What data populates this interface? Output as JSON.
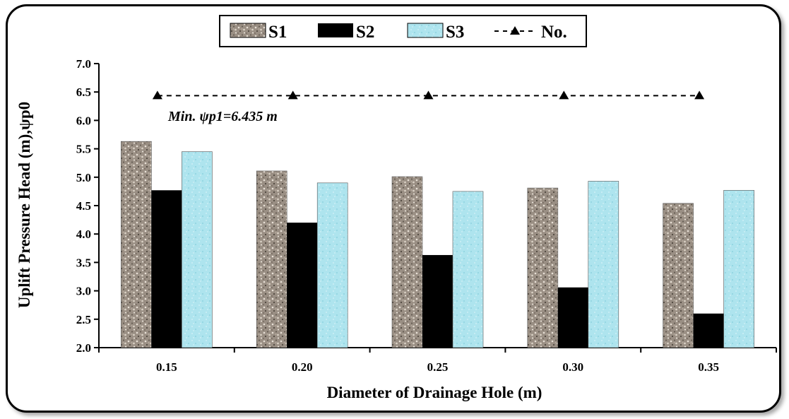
{
  "chart_data": {
    "type": "bar",
    "xlabel": "Diameter of Drainage Hole (m)",
    "ylabel": "Uplift Pressure Head (m),ψp0",
    "categories": [
      "0.15",
      "0.20",
      "0.25",
      "0.30",
      "0.35"
    ],
    "ylim": [
      2.0,
      7.0
    ],
    "yticks": [
      "2.0",
      "2.5",
      "3.0",
      "3.5",
      "4.0",
      "4.5",
      "5.0",
      "5.5",
      "6.0",
      "6.5",
      "7.0"
    ],
    "grid": false,
    "legend_position": "top-center",
    "series": [
      {
        "name": "S1",
        "kind": "bar",
        "pattern": "granite",
        "color": "#8a7f72",
        "values": [
          5.63,
          5.11,
          5.01,
          4.81,
          4.54
        ]
      },
      {
        "name": "S2",
        "kind": "bar",
        "pattern": "solid",
        "color": "#000000",
        "values": [
          4.77,
          4.2,
          3.63,
          3.06,
          2.6
        ]
      },
      {
        "name": "S3",
        "kind": "bar",
        "pattern": "light-blue",
        "color": "#aee4ee",
        "values": [
          5.45,
          4.9,
          4.75,
          4.93,
          4.77
        ]
      },
      {
        "name": "No.",
        "kind": "line",
        "style": "dashed",
        "marker": "triangle",
        "color": "#000000",
        "values": [
          6.435,
          6.435,
          6.435,
          6.435,
          6.435
        ]
      }
    ],
    "annotations": [
      {
        "text": "Min. ψp1=6.435 m"
      }
    ]
  }
}
